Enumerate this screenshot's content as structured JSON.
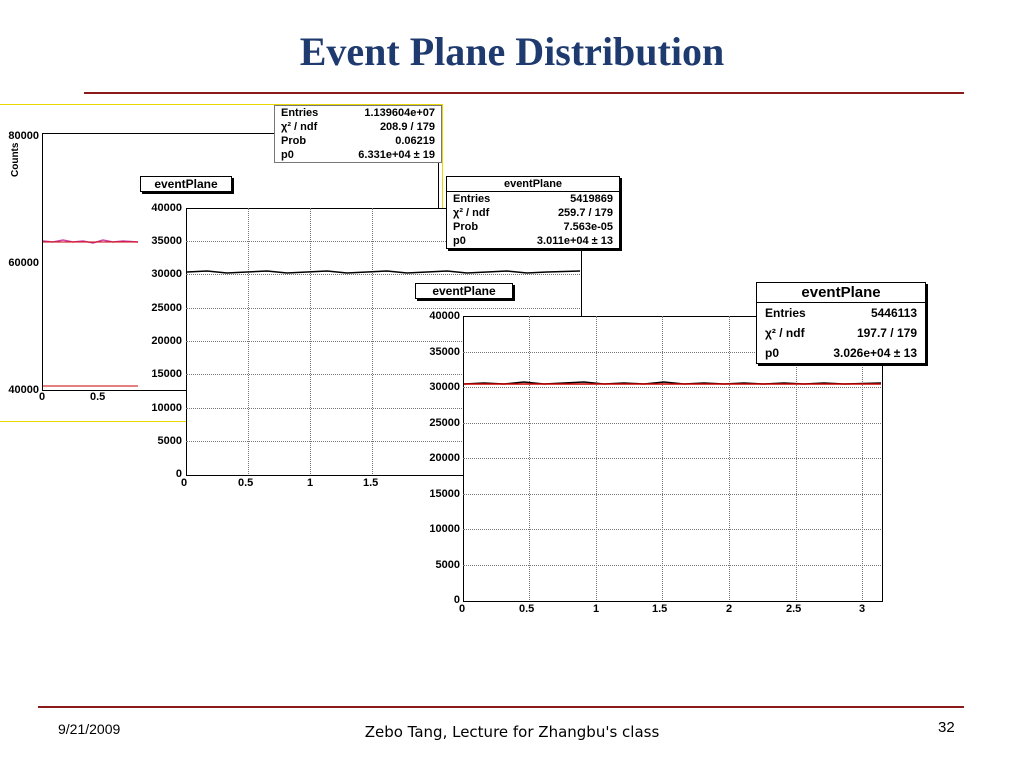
{
  "slide": {
    "title": "Event Plane Distribution",
    "date": "9/21/2009",
    "footer": "Zebo Tang, Lecture for Zhangbu's class",
    "page": "32"
  },
  "colors": {
    "title": "#1f3a6e",
    "rule": "#8b1a1a",
    "highlight": "#e8d800",
    "fit": "#cc0000"
  },
  "plot1": {
    "ylabel": "Counts",
    "yticks": [
      "80000",
      "60000",
      "40000"
    ],
    "xticks": [
      "0",
      "0.5"
    ],
    "stats": [
      {
        "k": "Entries",
        "v": "1.139604e+07"
      },
      {
        "k": "χ² / ndf",
        "v": "208.9 / 179"
      },
      {
        "k": "Prob",
        "v": "0.06219"
      },
      {
        "k": "p0",
        "v": "6.331e+04 ± 19"
      }
    ]
  },
  "plot2": {
    "title": "eventPlane",
    "yticks": [
      "40000",
      "35000",
      "30000",
      "25000",
      "20000",
      "15000",
      "10000",
      "5000",
      "0"
    ],
    "xticks": [
      "0",
      "0.5",
      "1",
      "1.5"
    ],
    "stats_title": "eventPlane",
    "stats": [
      {
        "k": "Entries",
        "v": "5419869"
      },
      {
        "k": "χ² / ndf",
        "v": "259.7 / 179"
      },
      {
        "k": "Prob",
        "v": "7.563e-05"
      },
      {
        "k": "p0",
        "v": "3.011e+04 ± 13"
      }
    ]
  },
  "plot3": {
    "title": "eventPlane",
    "yticks": [
      "40000",
      "35000",
      "30000",
      "25000",
      "20000",
      "15000",
      "10000",
      "5000",
      "0"
    ],
    "xticks": [
      "0",
      "0.5",
      "1",
      "1.5",
      "2",
      "2.5",
      "3"
    ],
    "stats_title": "eventPlane",
    "stats": [
      {
        "k": "Entries",
        "v": "5446113"
      },
      {
        "k": "χ² / ndf",
        "v": "197.7 / 179"
      },
      {
        "k": "p0",
        "v": "3.026e+04 ± 13"
      }
    ]
  }
}
